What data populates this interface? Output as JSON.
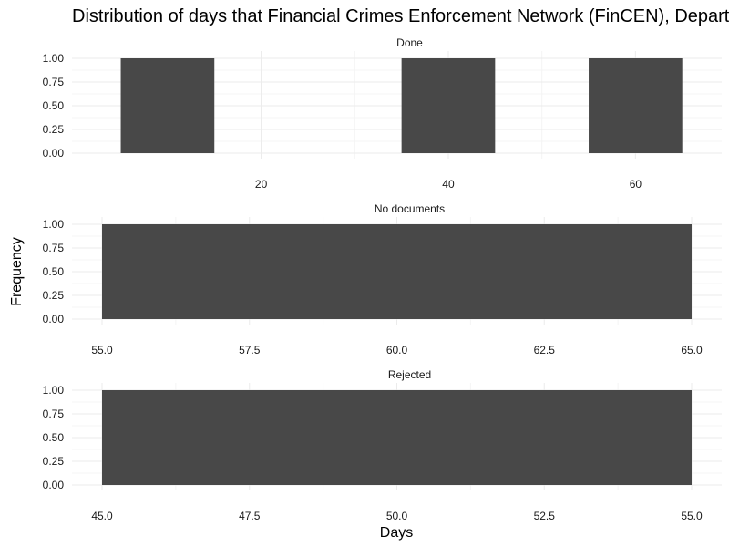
{
  "chart_data": {
    "type": "bar",
    "title": "Distribution of days that Financial Crimes Enforcement Network (FinCEN), Department of the Treasury took to respond to FOIA requests, by request outcome",
    "xlabel": "Days",
    "ylabel": "Frequency",
    "facets": [
      {
        "label": "Done",
        "x_ticks": [
          "20",
          "40",
          "60"
        ],
        "y_ticks": [
          "0.00",
          "0.25",
          "0.50",
          "0.75",
          "1.00"
        ],
        "xlim": [
          3,
          66
        ],
        "ylim": [
          0,
          1
        ],
        "bins": [
          {
            "x0": 5,
            "x1": 15,
            "value": 1
          },
          {
            "x0": 35,
            "x1": 45,
            "value": 1
          },
          {
            "x0": 55,
            "x1": 65,
            "value": 1
          }
        ]
      },
      {
        "label": "No documents",
        "x_ticks": [
          "55.0",
          "57.5",
          "60.0",
          "62.5",
          "65.0"
        ],
        "y_ticks": [
          "0.00",
          "0.25",
          "0.50",
          "0.75",
          "1.00"
        ],
        "xlim": [
          55,
          65
        ],
        "ylim": [
          0,
          1
        ],
        "bins": [
          {
            "x0": 55,
            "x1": 65,
            "value": 1
          }
        ]
      },
      {
        "label": "Rejected",
        "x_ticks": [
          "45.0",
          "47.5",
          "50.0",
          "52.5",
          "55.0"
        ],
        "y_ticks": [
          "0.00",
          "0.25",
          "0.50",
          "0.75",
          "1.00"
        ],
        "xlim": [
          45,
          55
        ],
        "ylim": [
          0,
          1
        ],
        "bins": [
          {
            "x0": 45,
            "x1": 55,
            "value": 1
          }
        ]
      }
    ],
    "bar_color": "#484848",
    "grid_major_color": "#ebebeb",
    "grid_minor_color": "#f4f4f4",
    "grid": true,
    "legend": "none"
  }
}
